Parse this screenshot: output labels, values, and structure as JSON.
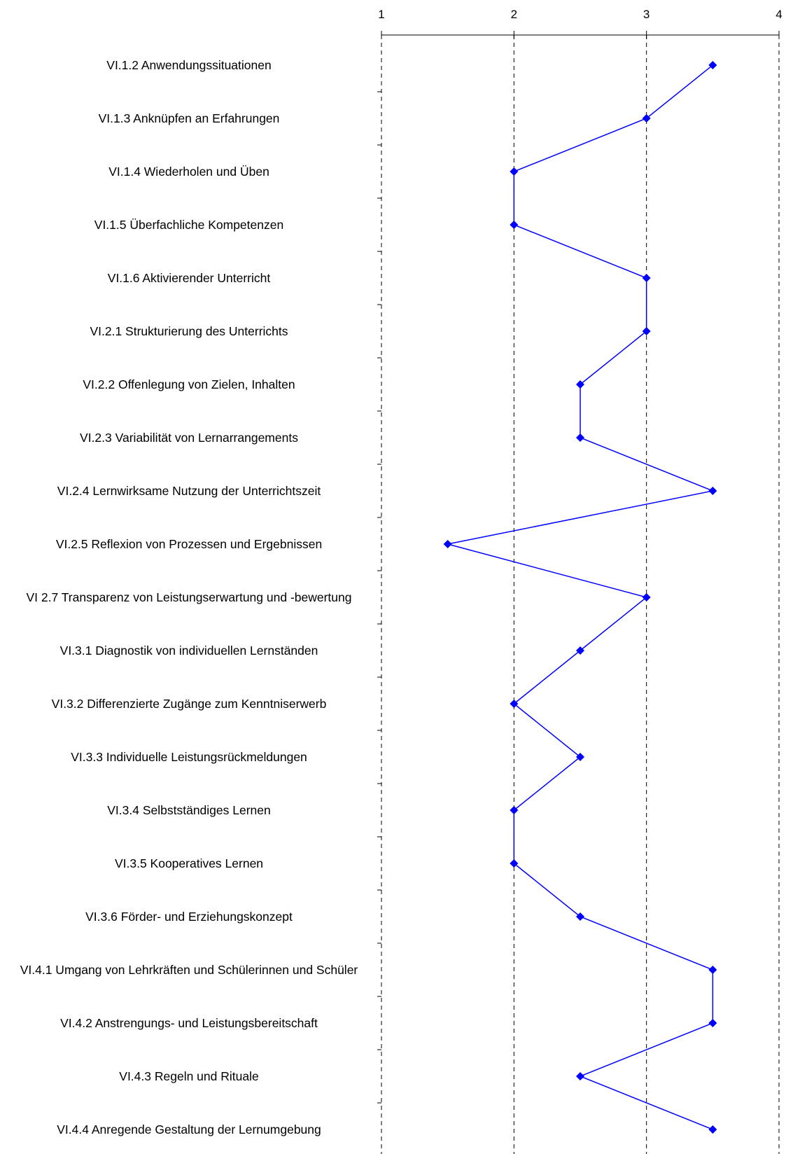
{
  "chart_data": {
    "type": "line",
    "orientation": "horizontal",
    "title": "",
    "xlabel": "",
    "ylabel": "",
    "xlim": [
      1,
      4
    ],
    "x_ticks": [
      "1",
      "2",
      "3",
      "4"
    ],
    "grid": "vertical dashed",
    "legend": "none",
    "series_color": "#0000FF",
    "categories": [
      "VI.1.2 Anwendungssituationen",
      "VI.1.3 Anknüpfen an Erfahrungen",
      "VI.1.4 Wiederholen und Üben",
      "VI.1.5 Überfachliche Kompetenzen",
      "VI.1.6 Aktivierender Unterricht",
      "VI.2.1 Strukturierung des Unterrichts",
      "VI.2.2 Offenlegung von Zielen, Inhalten",
      "VI.2.3 Variabilität von Lernarrangements",
      "VI.2.4 Lernwirksame Nutzung der Unterrichtszeit",
      "VI.2.5 Reflexion von Prozessen und Ergebnissen",
      "VI 2.7 Transparenz  von Leistungserwartung und -bewertung",
      "VI.3.1 Diagnostik von individuellen Lernständen",
      "VI.3.2 Differenzierte Zugänge zum Kenntniserwerb",
      "VI.3.3 Individuelle Leistungsrückmeldungen",
      "VI.3.4 Selbstständiges Lernen",
      "VI.3.5 Kooperatives Lernen",
      "VI.3.6 Förder- und Erziehungskonzept",
      "VI.4.1 Umgang von Lehrkräften und Schülerinnen und Schüler",
      "VI.4.2 Anstrengungs- und Leistungsbereitschaft",
      "VI.4.3 Regeln und Rituale",
      "VI.4.4 Anregende Gestaltung der Lernumgebung"
    ],
    "values": [
      3.5,
      3,
      2,
      2,
      3,
      3,
      2.5,
      2.5,
      3.5,
      1.5,
      3,
      2.5,
      2,
      2.5,
      2,
      2,
      2.5,
      3.5,
      3.5,
      2.5,
      3.5
    ]
  }
}
